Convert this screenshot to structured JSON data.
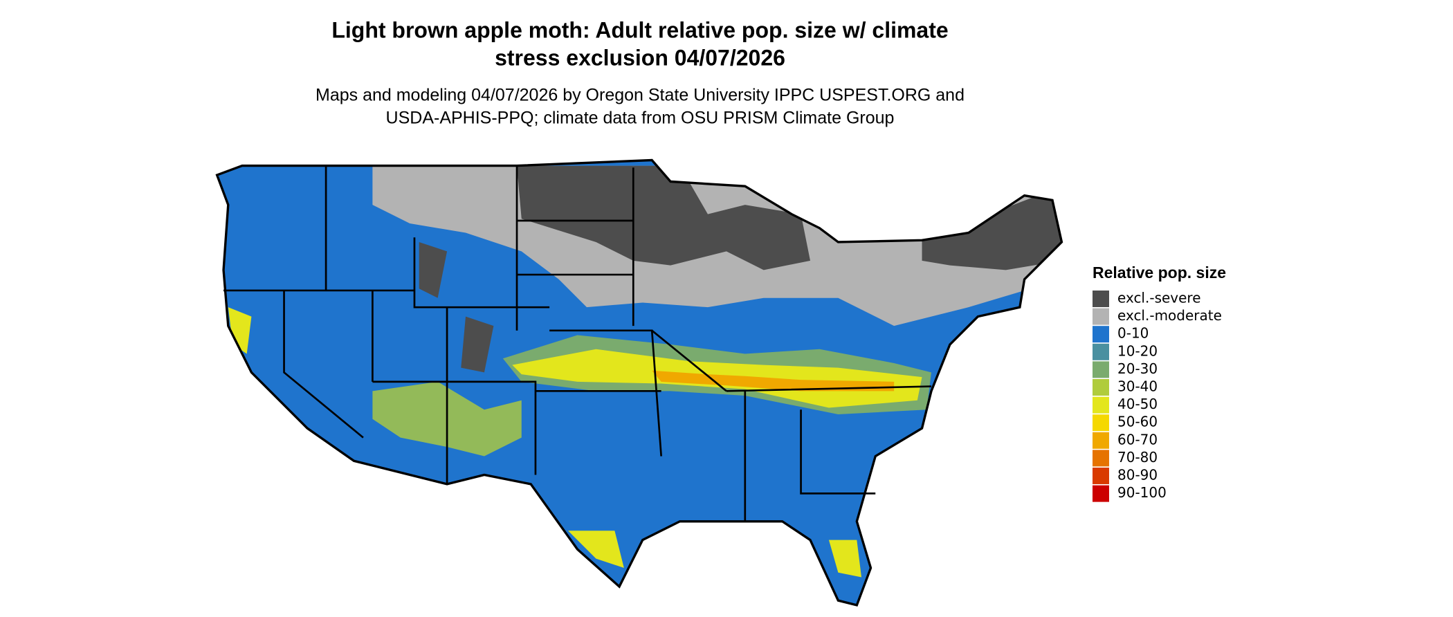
{
  "title": [
    "Light brown apple moth: Adult relative pop. size w/ climate",
    "stress exclusion 04/07/2026"
  ],
  "subtitle": [
    "Maps and modeling 04/07/2026 by Oregon State University IPPC USPEST.ORG and",
    "USDA-APHIS-PPQ; climate data from OSU PRISM Climate Group"
  ],
  "legend": {
    "title": "Relative pop. size",
    "items": [
      {
        "label": "excl.-severe",
        "color": "#4d4d4d"
      },
      {
        "label": "excl.-moderate",
        "color": "#b3b3b3"
      },
      {
        "label": "0-10",
        "color": "#1f74cd"
      },
      {
        "label": "10-20",
        "color": "#4a90a0"
      },
      {
        "label": "20-30",
        "color": "#7aab6e"
      },
      {
        "label": "30-40",
        "color": "#b0cc3c"
      },
      {
        "label": "40-50",
        "color": "#e3e61c"
      },
      {
        "label": "50-60",
        "color": "#f5d800"
      },
      {
        "label": "60-70",
        "color": "#f0a800"
      },
      {
        "label": "70-80",
        "color": "#e67300"
      },
      {
        "label": "80-90",
        "color": "#d93a00"
      },
      {
        "label": "90-100",
        "color": "#cc0000"
      }
    ]
  }
}
